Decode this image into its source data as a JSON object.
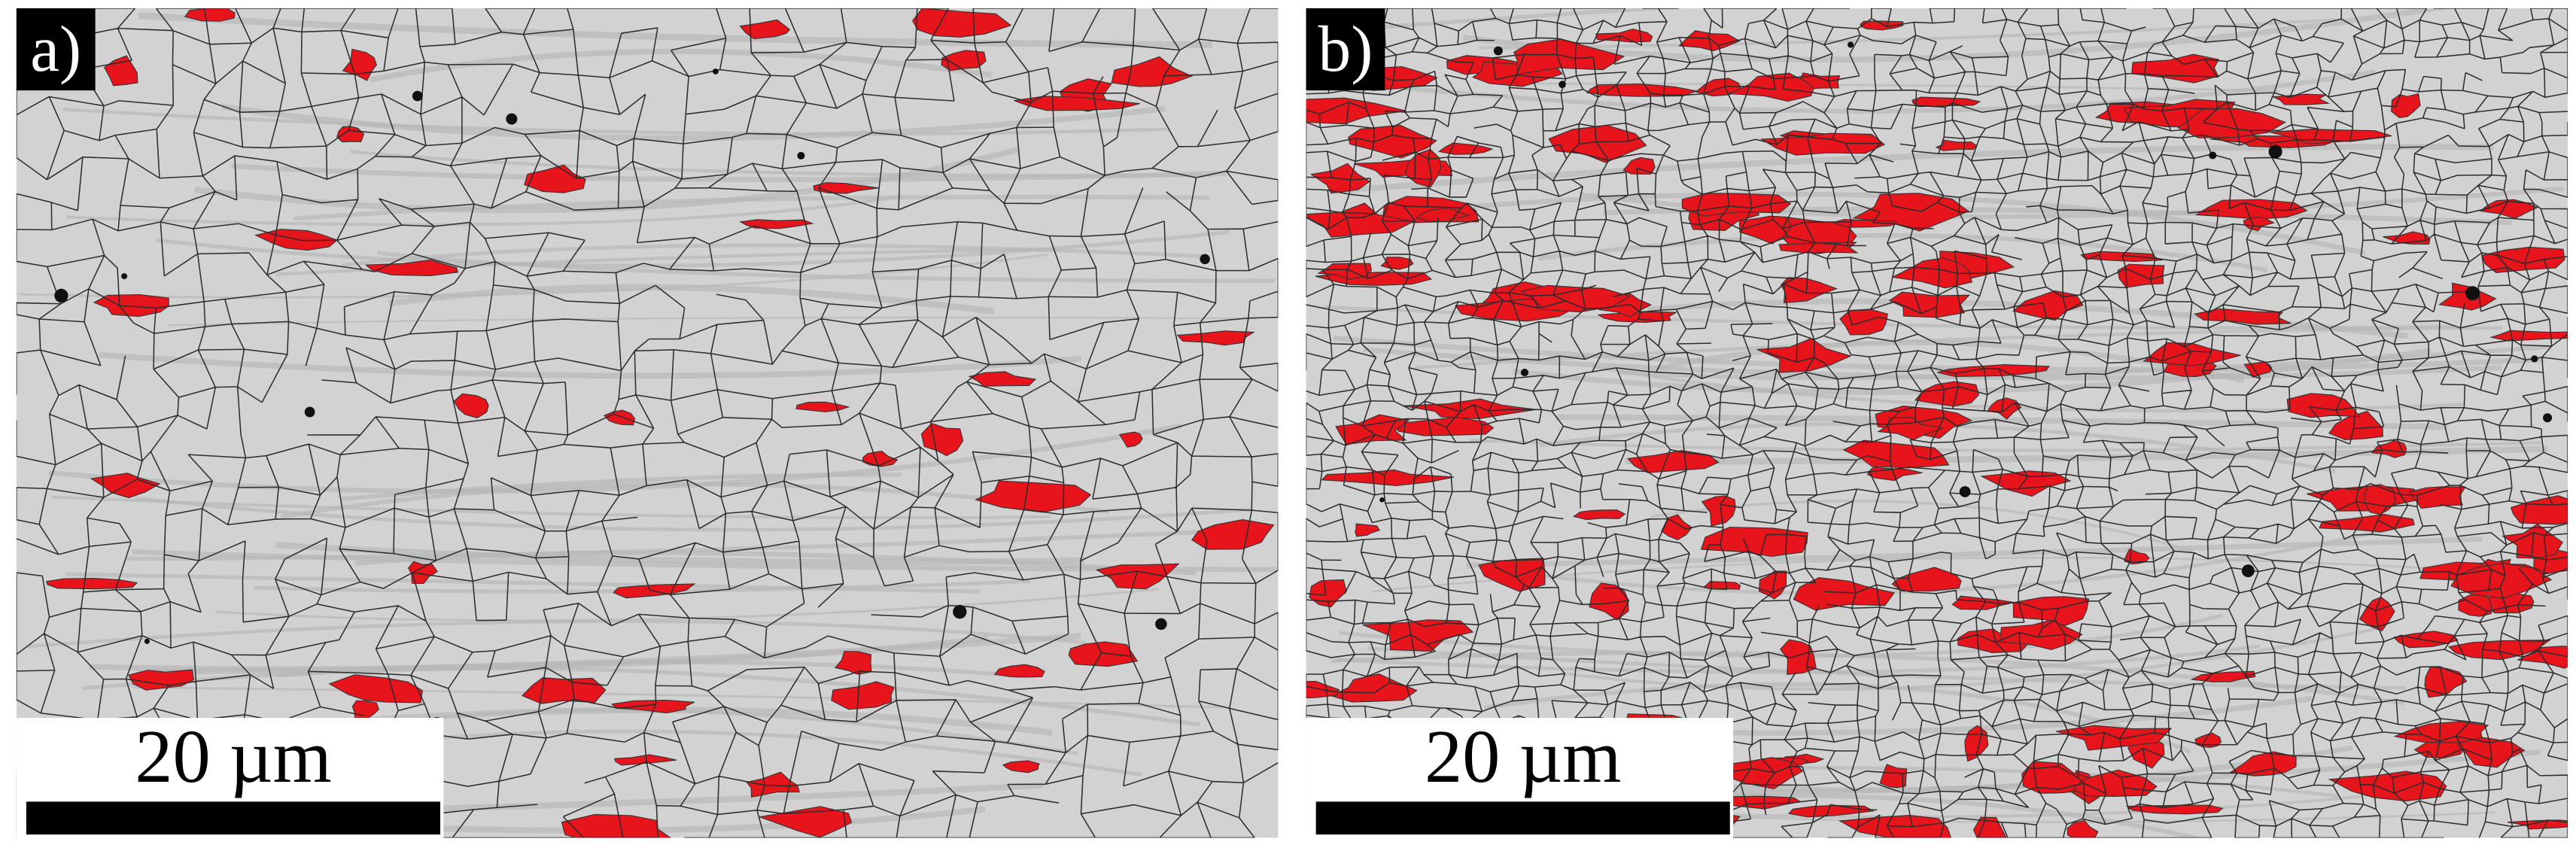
{
  "panels": [
    {
      "label": "a)",
      "scale_bar": "20 µm"
    },
    {
      "label": "b)",
      "scale_bar": "20 µm"
    }
  ]
}
